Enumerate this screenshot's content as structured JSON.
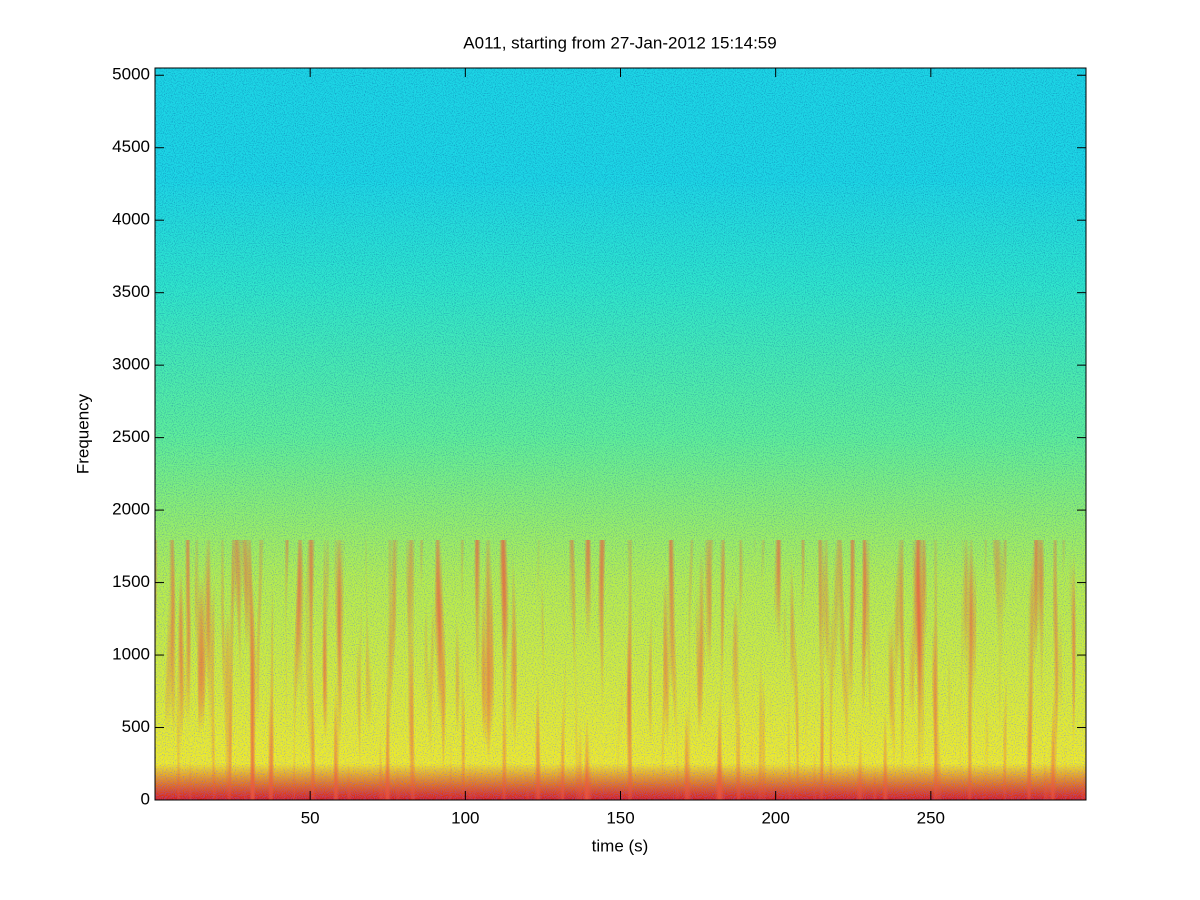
{
  "chart_data": {
    "type": "spectrogram",
    "title": "A011, starting from 27-Jan-2012 15:14:59",
    "xlabel": "time (s)",
    "ylabel": "Frequency",
    "xlim": [
      0,
      300
    ],
    "xticks": [
      50,
      100,
      150,
      200,
      250
    ],
    "ylim": [
      0,
      5050
    ],
    "yticks": [
      0,
      500,
      1000,
      1500,
      2000,
      2500,
      3000,
      3500,
      4000,
      4500,
      5000
    ],
    "colormap": [
      "#d81c14",
      "#f2ee1c",
      "#b8f048",
      "#5ef09a",
      "#30e6cc",
      "#1ed6e6"
    ]
  }
}
